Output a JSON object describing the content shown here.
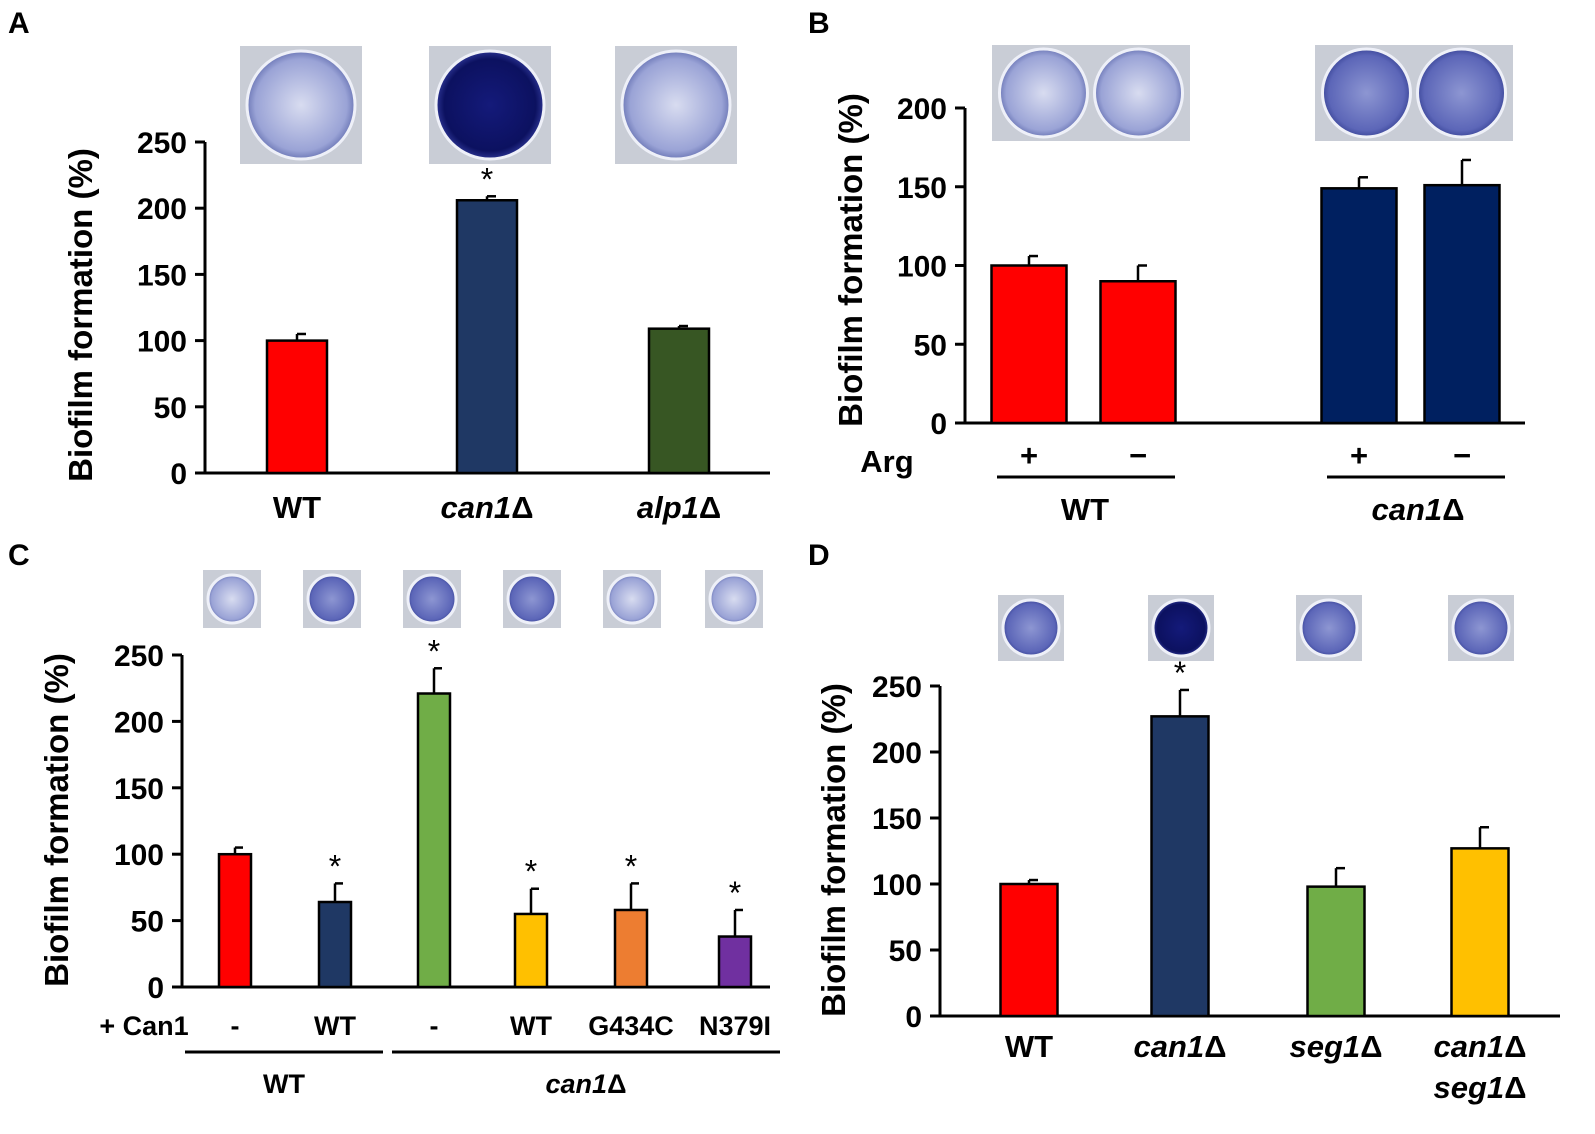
{
  "chart_data": [
    {
      "panel": "A",
      "type": "bar",
      "ylabel": "Biofilm formation (%)",
      "ylim": [
        0,
        250
      ],
      "yticks": [
        0,
        50,
        100,
        150,
        200,
        250
      ],
      "categories": [
        "WT",
        "can1Δ",
        "alp1Δ"
      ],
      "italic_categories": [
        false,
        true,
        true
      ],
      "values": [
        100,
        206,
        109
      ],
      "errors": [
        5,
        3,
        2
      ],
      "colors": [
        "#ff0000",
        "#1f3864",
        "#375623"
      ],
      "significant": [
        false,
        true,
        false
      ],
      "significance_marker": "*"
    },
    {
      "panel": "B",
      "type": "bar",
      "ylabel": "Biofilm formation (%)",
      "ylim": [
        0,
        200
      ],
      "yticks": [
        0,
        50,
        100,
        150,
        200
      ],
      "row_label": "Arg",
      "categories": [
        "+",
        "−",
        "+",
        "−"
      ],
      "values": [
        100,
        90,
        149,
        151
      ],
      "errors": [
        6,
        10,
        7,
        16
      ],
      "colors": [
        "#ff0000",
        "#ff0000",
        "#002060",
        "#002060"
      ],
      "significant": [
        false,
        false,
        false,
        false
      ],
      "groups": [
        {
          "label": "WT",
          "italic": false
        },
        {
          "label": "can1Δ",
          "italic": true
        }
      ]
    },
    {
      "panel": "C",
      "type": "bar",
      "ylabel": "Biofilm formation (%)",
      "ylim": [
        0,
        250
      ],
      "yticks": [
        0,
        50,
        100,
        150,
        200,
        250
      ],
      "row_label": "+ Can1",
      "categories": [
        "-",
        "WT",
        "-",
        "WT",
        "G434C",
        "N379I"
      ],
      "values": [
        100,
        64,
        221,
        55,
        58,
        38
      ],
      "errors": [
        5,
        14,
        19,
        19,
        20,
        20
      ],
      "colors": [
        "#ff0000",
        "#1f3864",
        "#70ad47",
        "#ffc000",
        "#ed7d31",
        "#7030a0"
      ],
      "significant": [
        false,
        true,
        true,
        true,
        true,
        true
      ],
      "significance_marker": "*",
      "groups": [
        {
          "label": "WT",
          "italic": false
        },
        {
          "label": "can1Δ",
          "italic": true
        }
      ]
    },
    {
      "panel": "D",
      "type": "bar",
      "ylabel": "Biofilm formation (%)",
      "ylim": [
        0,
        250
      ],
      "yticks": [
        0,
        50,
        100,
        150,
        200,
        250
      ],
      "categories": [
        "WT",
        "can1Δ",
        "seg1Δ",
        "can1Δ seg1Δ"
      ],
      "category_lines": [
        [
          "WT"
        ],
        [
          "can1Δ"
        ],
        [
          "seg1Δ"
        ],
        [
          "can1Δ",
          "seg1Δ"
        ]
      ],
      "italic_categories": [
        false,
        true,
        true,
        true
      ],
      "values": [
        100,
        227,
        98,
        127
      ],
      "errors": [
        3,
        20,
        14,
        16
      ],
      "colors": [
        "#ff0000",
        "#1f3864",
        "#70ad47",
        "#ffc000"
      ],
      "significant": [
        false,
        true,
        false,
        false
      ],
      "significance_marker": "*"
    }
  ]
}
